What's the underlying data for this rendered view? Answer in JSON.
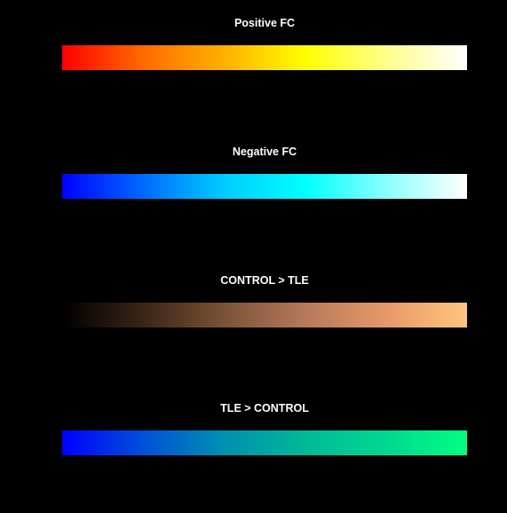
{
  "colorbars": [
    {
      "title": "Positive FC",
      "colors": [
        "#ff0000",
        "#ff6a00",
        "#ffb000",
        "#ffff00",
        "#ffff8a",
        "#ffffff"
      ]
    },
    {
      "title": "Negative FC",
      "colors": [
        "#0000ff",
        "#006aff",
        "#00ccff",
        "#00ffff",
        "#8affff",
        "#ffffff"
      ]
    },
    {
      "title": "CONTROL > TLE",
      "colors": [
        "#000000",
        "#3a2516",
        "#7a5236",
        "#b7795a",
        "#e69868",
        "#ffc57f"
      ]
    },
    {
      "title": "TLE > CONTROL",
      "colors": [
        "#0000ff",
        "#0050d8",
        "#0090b0",
        "#00b898",
        "#00d890",
        "#00ff80"
      ]
    }
  ]
}
